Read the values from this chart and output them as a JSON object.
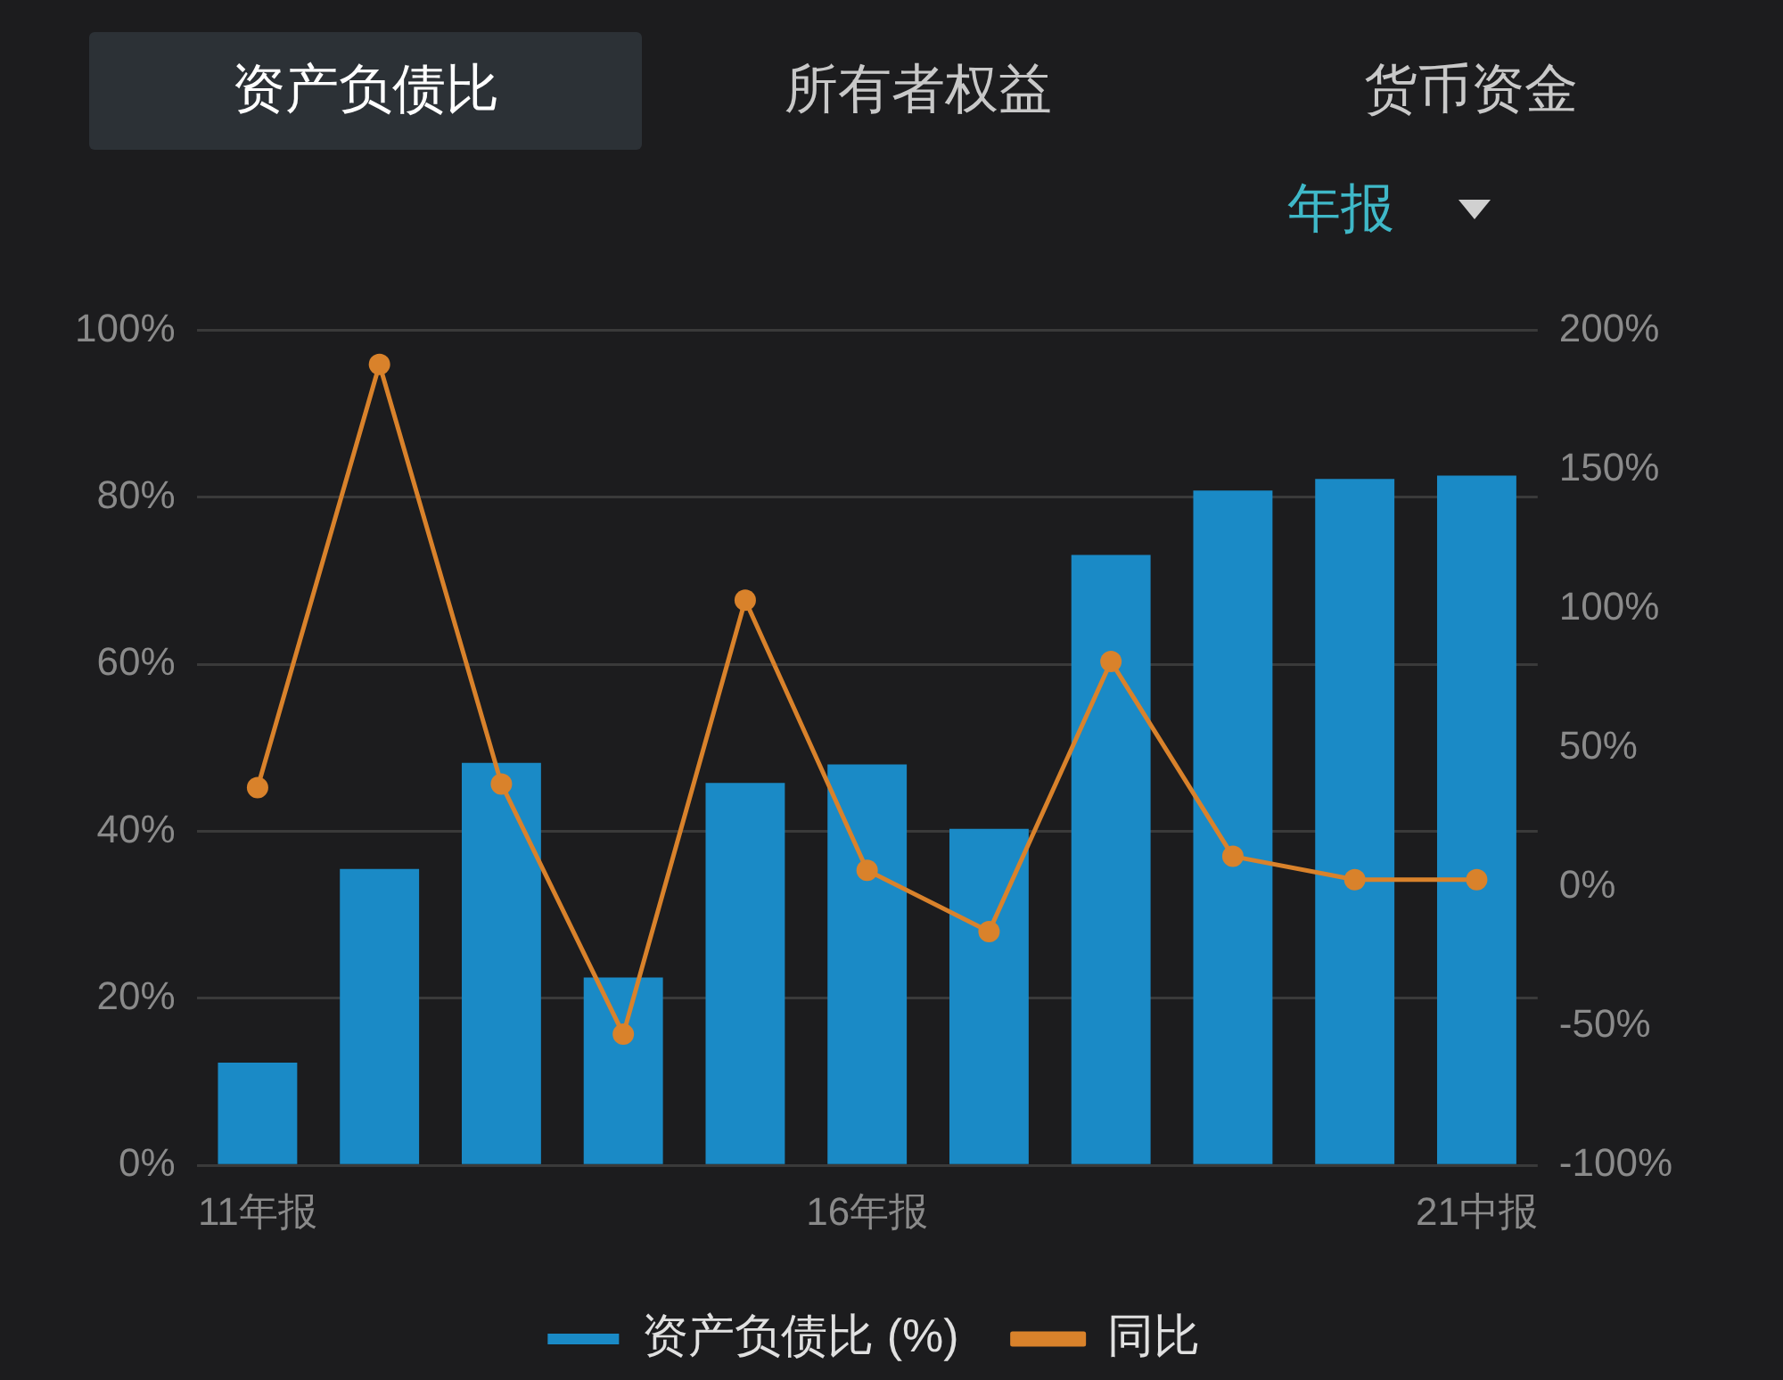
{
  "chart_data": {
    "type": "bar",
    "annotations": [
      "资产负债比",
      "所有者权益",
      "货币资金",
      "年报"
    ],
    "categories": [
      "11年报",
      null,
      null,
      null,
      null,
      "16年报",
      null,
      null,
      null,
      null,
      "21中报"
    ],
    "series": [
      {
        "name": "资产负债比 (%)",
        "color": "#1a8ac6",
        "values": [
          12.3,
          35.5,
          48.2,
          22.5,
          45.8,
          48.0,
          40.3,
          73.1,
          80.8,
          82.2,
          82.6
        ]
      },
      {
        "name": "同比",
        "type": "line",
        "axis": "y2",
        "color": "#d9822b",
        "values": [
          35.7,
          187.7,
          37,
          -52.9,
          103,
          6,
          -16,
          81,
          11,
          2.6,
          2.6
        ]
      }
    ],
    "ylim": [
      0,
      100
    ],
    "yticks": [
      {
        "value": 0,
        "label": "0%"
      },
      {
        "value": 20,
        "label": "20%"
      },
      {
        "value": 40,
        "label": "40%"
      },
      {
        "value": 60,
        "label": "60%"
      },
      {
        "value": 80,
        "label": "80%"
      },
      {
        "value": 100,
        "label": "100%"
      }
    ],
    "y2lim": [
      -100,
      200
    ],
    "y2ticks": [
      {
        "value": -100,
        "label": "-100%"
      },
      {
        "value": -50,
        "label": "-50%"
      },
      {
        "value": 0,
        "label": "0%"
      },
      {
        "value": 50,
        "label": "50%"
      },
      {
        "value": 100,
        "label": "100%"
      },
      {
        "value": 150,
        "label": "150%"
      },
      {
        "value": 200,
        "label": "200%"
      }
    ],
    "grid": "y",
    "legend": "bottom",
    "marker": "circle",
    "line_style": "solid"
  }
}
